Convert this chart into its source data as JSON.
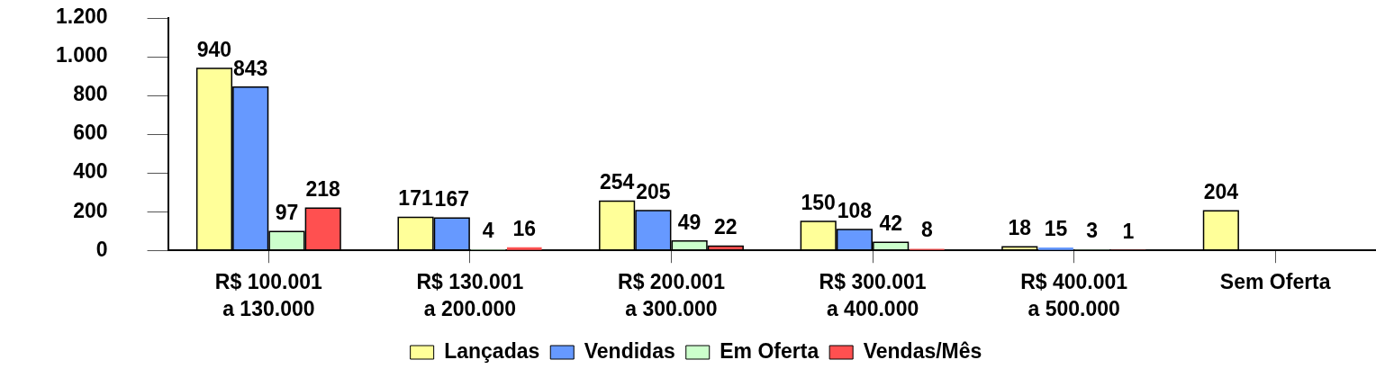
{
  "chart_data": {
    "type": "bar",
    "categories": [
      "R$ 100.001\na 130.000",
      "R$ 130.001\na 200.000",
      "R$ 200.001\na 300.000",
      "R$ 300.001\na 400.000",
      "R$ 400.001\na 500.000",
      "Sem Oferta"
    ],
    "series": [
      {
        "name": "Lançadas",
        "color": "#ffff99",
        "values": [
          940,
          171,
          254,
          150,
          18,
          204
        ]
      },
      {
        "name": "Vendidas",
        "color": "#6699ff",
        "values": [
          843,
          167,
          205,
          108,
          15,
          null
        ]
      },
      {
        "name": "Em Oferta",
        "color": "#ccffcc",
        "values": [
          97,
          4,
          49,
          42,
          3,
          null
        ]
      },
      {
        "name": "Vendas/Mês",
        "color": "#ff5050",
        "values": [
          218,
          16,
          22,
          8,
          1,
          null
        ]
      }
    ],
    "ylim": [
      0,
      1200
    ],
    "yticks": [
      0,
      200,
      400,
      600,
      800,
      {
        "value": 1000,
        "label": "1.000"
      },
      {
        "value": 1200,
        "label": "1.200"
      }
    ],
    "data_labels": true,
    "legend": "bottom",
    "grid": false
  }
}
